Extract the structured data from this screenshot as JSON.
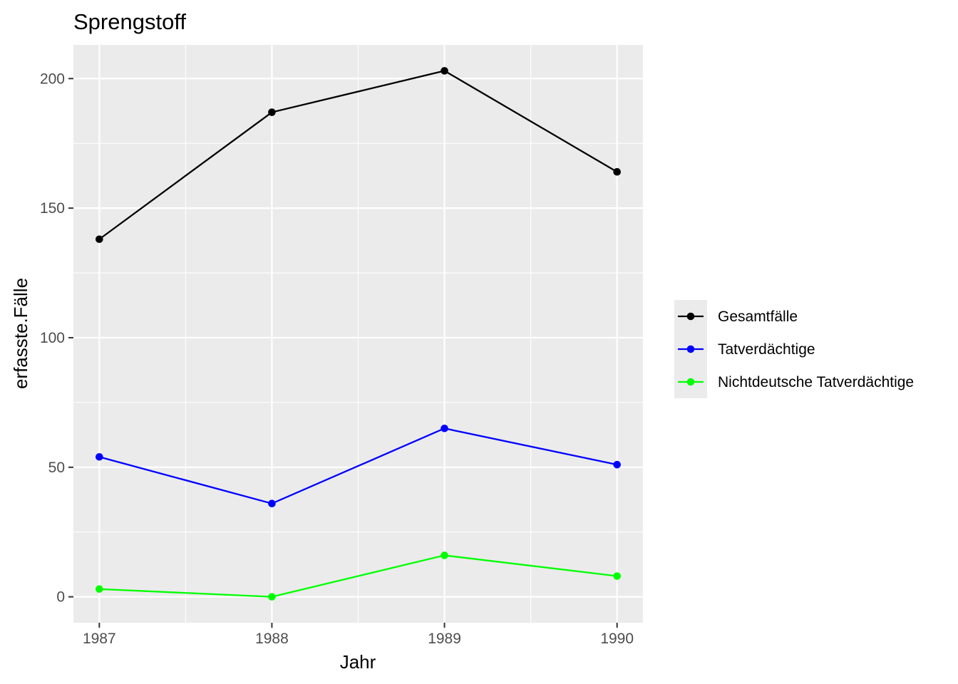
{
  "chart_data": {
    "type": "line",
    "title": "Sprengstoff",
    "xlabel": "Jahr",
    "ylabel": "erfasste.Fälle",
    "x": [
      1987,
      1988,
      1989,
      1990
    ],
    "x_tick_labels": [
      "1987",
      "1988",
      "1989",
      "1990"
    ],
    "xlim": [
      1986.85,
      1990.15
    ],
    "ylim": [
      -10,
      213
    ],
    "y_ticks": [
      0,
      50,
      100,
      150,
      200
    ],
    "y_tick_labels": [
      "0",
      "50",
      "100",
      "150",
      "200"
    ],
    "grid": true,
    "legend_position": "right",
    "series": [
      {
        "name": "Gesamtfälle",
        "color": "#000000",
        "values": [
          138,
          187,
          203,
          164
        ]
      },
      {
        "name": "Tatverdächtige",
        "color": "#0000ff",
        "values": [
          54,
          36,
          65,
          51
        ]
      },
      {
        "name": "Nichtdeutsche Tatverdächtige",
        "color": "#00ff00",
        "values": [
          3,
          0,
          16,
          8
        ]
      }
    ]
  }
}
